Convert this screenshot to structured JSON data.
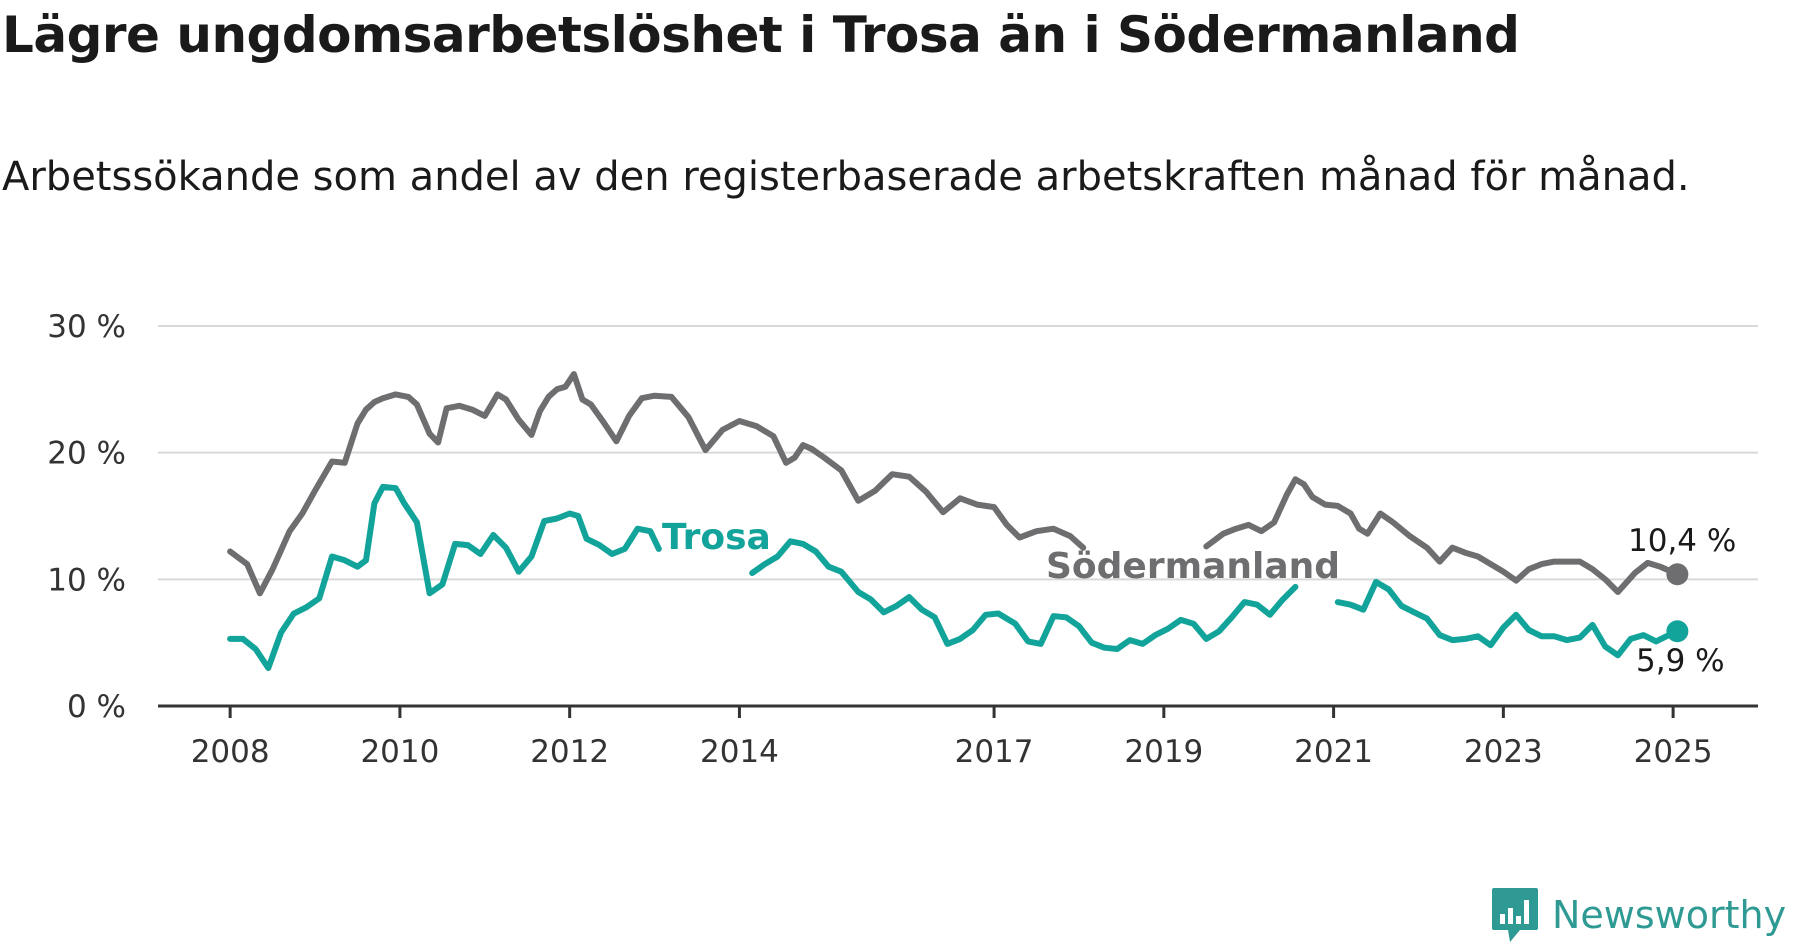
{
  "title": "Lägre ungdomsarbetslöshet i Trosa än i Södermanland",
  "subtitle": "Arbetssökande som andel av den registerbaserade arbetskraften månad för månad.",
  "brand": "Newsworthy",
  "colors": {
    "trosa": "#12a39a",
    "sodermanland": "#6e6e70",
    "grid": "#d9d9d9",
    "axis": "#333333"
  },
  "chart_data": {
    "type": "line",
    "y_ticks": [
      "0 %",
      "10 %",
      "20 %",
      "30 %"
    ],
    "x_ticks": [
      "2008",
      "2010",
      "2012",
      "2014",
      "2017",
      "2019",
      "2021",
      "2023",
      "2025"
    ],
    "ylim": [
      0,
      30
    ],
    "xlim": [
      2007.15,
      2026.0
    ],
    "grid": true,
    "end_labels": {
      "trosa": "5,9 %",
      "sodermanland": "10,4 %"
    },
    "series": [
      {
        "name": "Södermanland",
        "x": [
          2008.0,
          2008.2,
          2008.35,
          2008.5,
          2008.7,
          2008.85,
          2009.0,
          2009.2,
          2009.35,
          2009.5,
          2009.6,
          2009.7,
          2009.8,
          2009.95,
          2010.1,
          2010.2,
          2010.35,
          2010.45,
          2010.55,
          2010.7,
          2010.85,
          2011.0,
          2011.15,
          2011.25,
          2011.4,
          2011.55,
          2011.65,
          2011.75,
          2011.85,
          2011.95,
          2012.05,
          2012.15,
          2012.25,
          2012.4,
          2012.55,
          2012.7,
          2012.85,
          2013.0,
          2013.2,
          2013.4,
          2013.6,
          2013.8,
          2014.0,
          2014.2,
          2014.4,
          2014.55,
          2014.65,
          2014.75,
          2014.85,
          2015.0,
          2015.2,
          2015.4,
          2015.6,
          2015.8,
          2016.0,
          2016.2,
          2016.4,
          2016.6,
          2016.8,
          2017.0,
          2017.15,
          2017.3,
          2017.5,
          2017.7,
          2017.9,
          2018.05
        ],
        "values": [
          12.2,
          11.2,
          8.9,
          10.8,
          13.8,
          15.2,
          17.0,
          19.3,
          19.2,
          22.3,
          23.4,
          24.0,
          24.3,
          24.6,
          24.4,
          23.8,
          21.5,
          20.8,
          23.5,
          23.7,
          23.4,
          22.9,
          24.6,
          24.2,
          22.6,
          21.4,
          23.3,
          24.4,
          25.0,
          25.2,
          26.2,
          24.2,
          23.8,
          22.4,
          20.9,
          22.9,
          24.3,
          24.5,
          24.4,
          22.8,
          20.2,
          21.8,
          22.5,
          22.1,
          21.3,
          19.2,
          19.6,
          20.6,
          20.3,
          19.6,
          18.6,
          16.2,
          17.0,
          18.3,
          18.1,
          16.9,
          15.3,
          16.4,
          15.9,
          15.7,
          14.3,
          13.3,
          13.8,
          14.0,
          13.4,
          12.5
        ]
      },
      {
        "name": "Södermanland",
        "x": [
          2019.5,
          2019.7,
          2019.85,
          2020.0,
          2020.15,
          2020.3,
          2020.45,
          2020.55,
          2020.65,
          2020.75,
          2020.9,
          2021.05,
          2021.2,
          2021.3,
          2021.4,
          2021.55,
          2021.7,
          2021.9,
          2022.1,
          2022.25,
          2022.4,
          2022.55,
          2022.7,
          2022.85,
          2023.0,
          2023.15,
          2023.3,
          2023.45,
          2023.6,
          2023.75,
          2023.9,
          2024.05,
          2024.2,
          2024.35,
          2024.55,
          2024.7,
          2024.85,
          2025.05
        ],
        "values": [
          12.6,
          13.6,
          14.0,
          14.3,
          13.8,
          14.5,
          16.7,
          17.9,
          17.5,
          16.5,
          15.9,
          15.8,
          15.2,
          14.0,
          13.6,
          15.2,
          14.5,
          13.4,
          12.5,
          11.4,
          12.5,
          12.1,
          11.8,
          11.2,
          10.6,
          9.9,
          10.8,
          11.2,
          11.4,
          11.4,
          11.4,
          10.8,
          10.0,
          9.0,
          10.5,
          11.3,
          11.0,
          10.4
        ]
      },
      {
        "name": "Trosa",
        "x": [
          2008.0,
          2008.15,
          2008.3,
          2008.45,
          2008.6,
          2008.75,
          2008.9,
          2009.05,
          2009.2,
          2009.35,
          2009.5,
          2009.6,
          2009.7,
          2009.8,
          2009.95,
          2010.05,
          2010.2,
          2010.35,
          2010.5,
          2010.65,
          2010.8,
          2010.95,
          2011.1,
          2011.25,
          2011.4,
          2011.55,
          2011.7,
          2011.85,
          2012.0,
          2012.1,
          2012.2,
          2012.35,
          2012.5,
          2012.65,
          2012.8,
          2012.95,
          2013.05
        ],
        "values": [
          5.3,
          5.3,
          4.5,
          3.0,
          5.8,
          7.3,
          7.8,
          8.5,
          11.8,
          11.5,
          11.0,
          11.5,
          16.0,
          17.3,
          17.2,
          16.0,
          14.5,
          8.9,
          9.6,
          12.8,
          12.7,
          12.0,
          13.5,
          12.5,
          10.6,
          11.8,
          14.6,
          14.8,
          15.2,
          15.0,
          13.2,
          12.7,
          12.0,
          12.4,
          14.0,
          13.8,
          12.4
        ]
      },
      {
        "name": "Trosa",
        "x": [
          2014.15,
          2014.3,
          2014.45,
          2014.6,
          2014.75,
          2014.9,
          2015.05,
          2015.2,
          2015.4,
          2015.55,
          2015.7,
          2015.85,
          2016.0,
          2016.15,
          2016.3,
          2016.45,
          2016.6,
          2016.75,
          2016.9,
          2017.05,
          2017.25,
          2017.4,
          2017.55,
          2017.7,
          2017.85,
          2018.0,
          2018.15,
          2018.3,
          2018.45,
          2018.6,
          2018.75,
          2018.9,
          2019.05,
          2019.2,
          2019.35,
          2019.5,
          2019.65,
          2019.8,
          2019.95,
          2020.1,
          2020.25,
          2020.4,
          2020.55
        ],
        "values": [
          10.5,
          11.2,
          11.8,
          13.0,
          12.8,
          12.2,
          11.0,
          10.6,
          9.0,
          8.4,
          7.4,
          7.9,
          8.6,
          7.6,
          7.0,
          4.9,
          5.3,
          6.0,
          7.2,
          7.3,
          6.5,
          5.1,
          4.9,
          7.1,
          7.0,
          6.3,
          5.0,
          4.6,
          4.5,
          5.2,
          4.9,
          5.6,
          6.1,
          6.8,
          6.5,
          5.3,
          5.9,
          7.0,
          8.2,
          8.0,
          7.2,
          8.4,
          9.4
        ]
      },
      {
        "name": "Trosa",
        "x": [
          2021.05,
          2021.2,
          2021.35,
          2021.5,
          2021.65,
          2021.8,
          2021.95,
          2022.1,
          2022.25,
          2022.4,
          2022.55,
          2022.7,
          2022.85,
          2023.0,
          2023.15,
          2023.3,
          2023.45,
          2023.6,
          2023.75,
          2023.9,
          2024.05,
          2024.2,
          2024.35,
          2024.5,
          2024.65,
          2024.8,
          2024.95,
          2025.05
        ],
        "values": [
          8.2,
          8.0,
          7.6,
          9.8,
          9.2,
          7.9,
          7.4,
          6.9,
          5.6,
          5.2,
          5.3,
          5.5,
          4.8,
          6.2,
          7.2,
          6.0,
          5.5,
          5.5,
          5.2,
          5.4,
          6.4,
          4.7,
          4.0,
          5.3,
          5.6,
          5.1,
          5.6,
          5.9
        ]
      }
    ]
  }
}
